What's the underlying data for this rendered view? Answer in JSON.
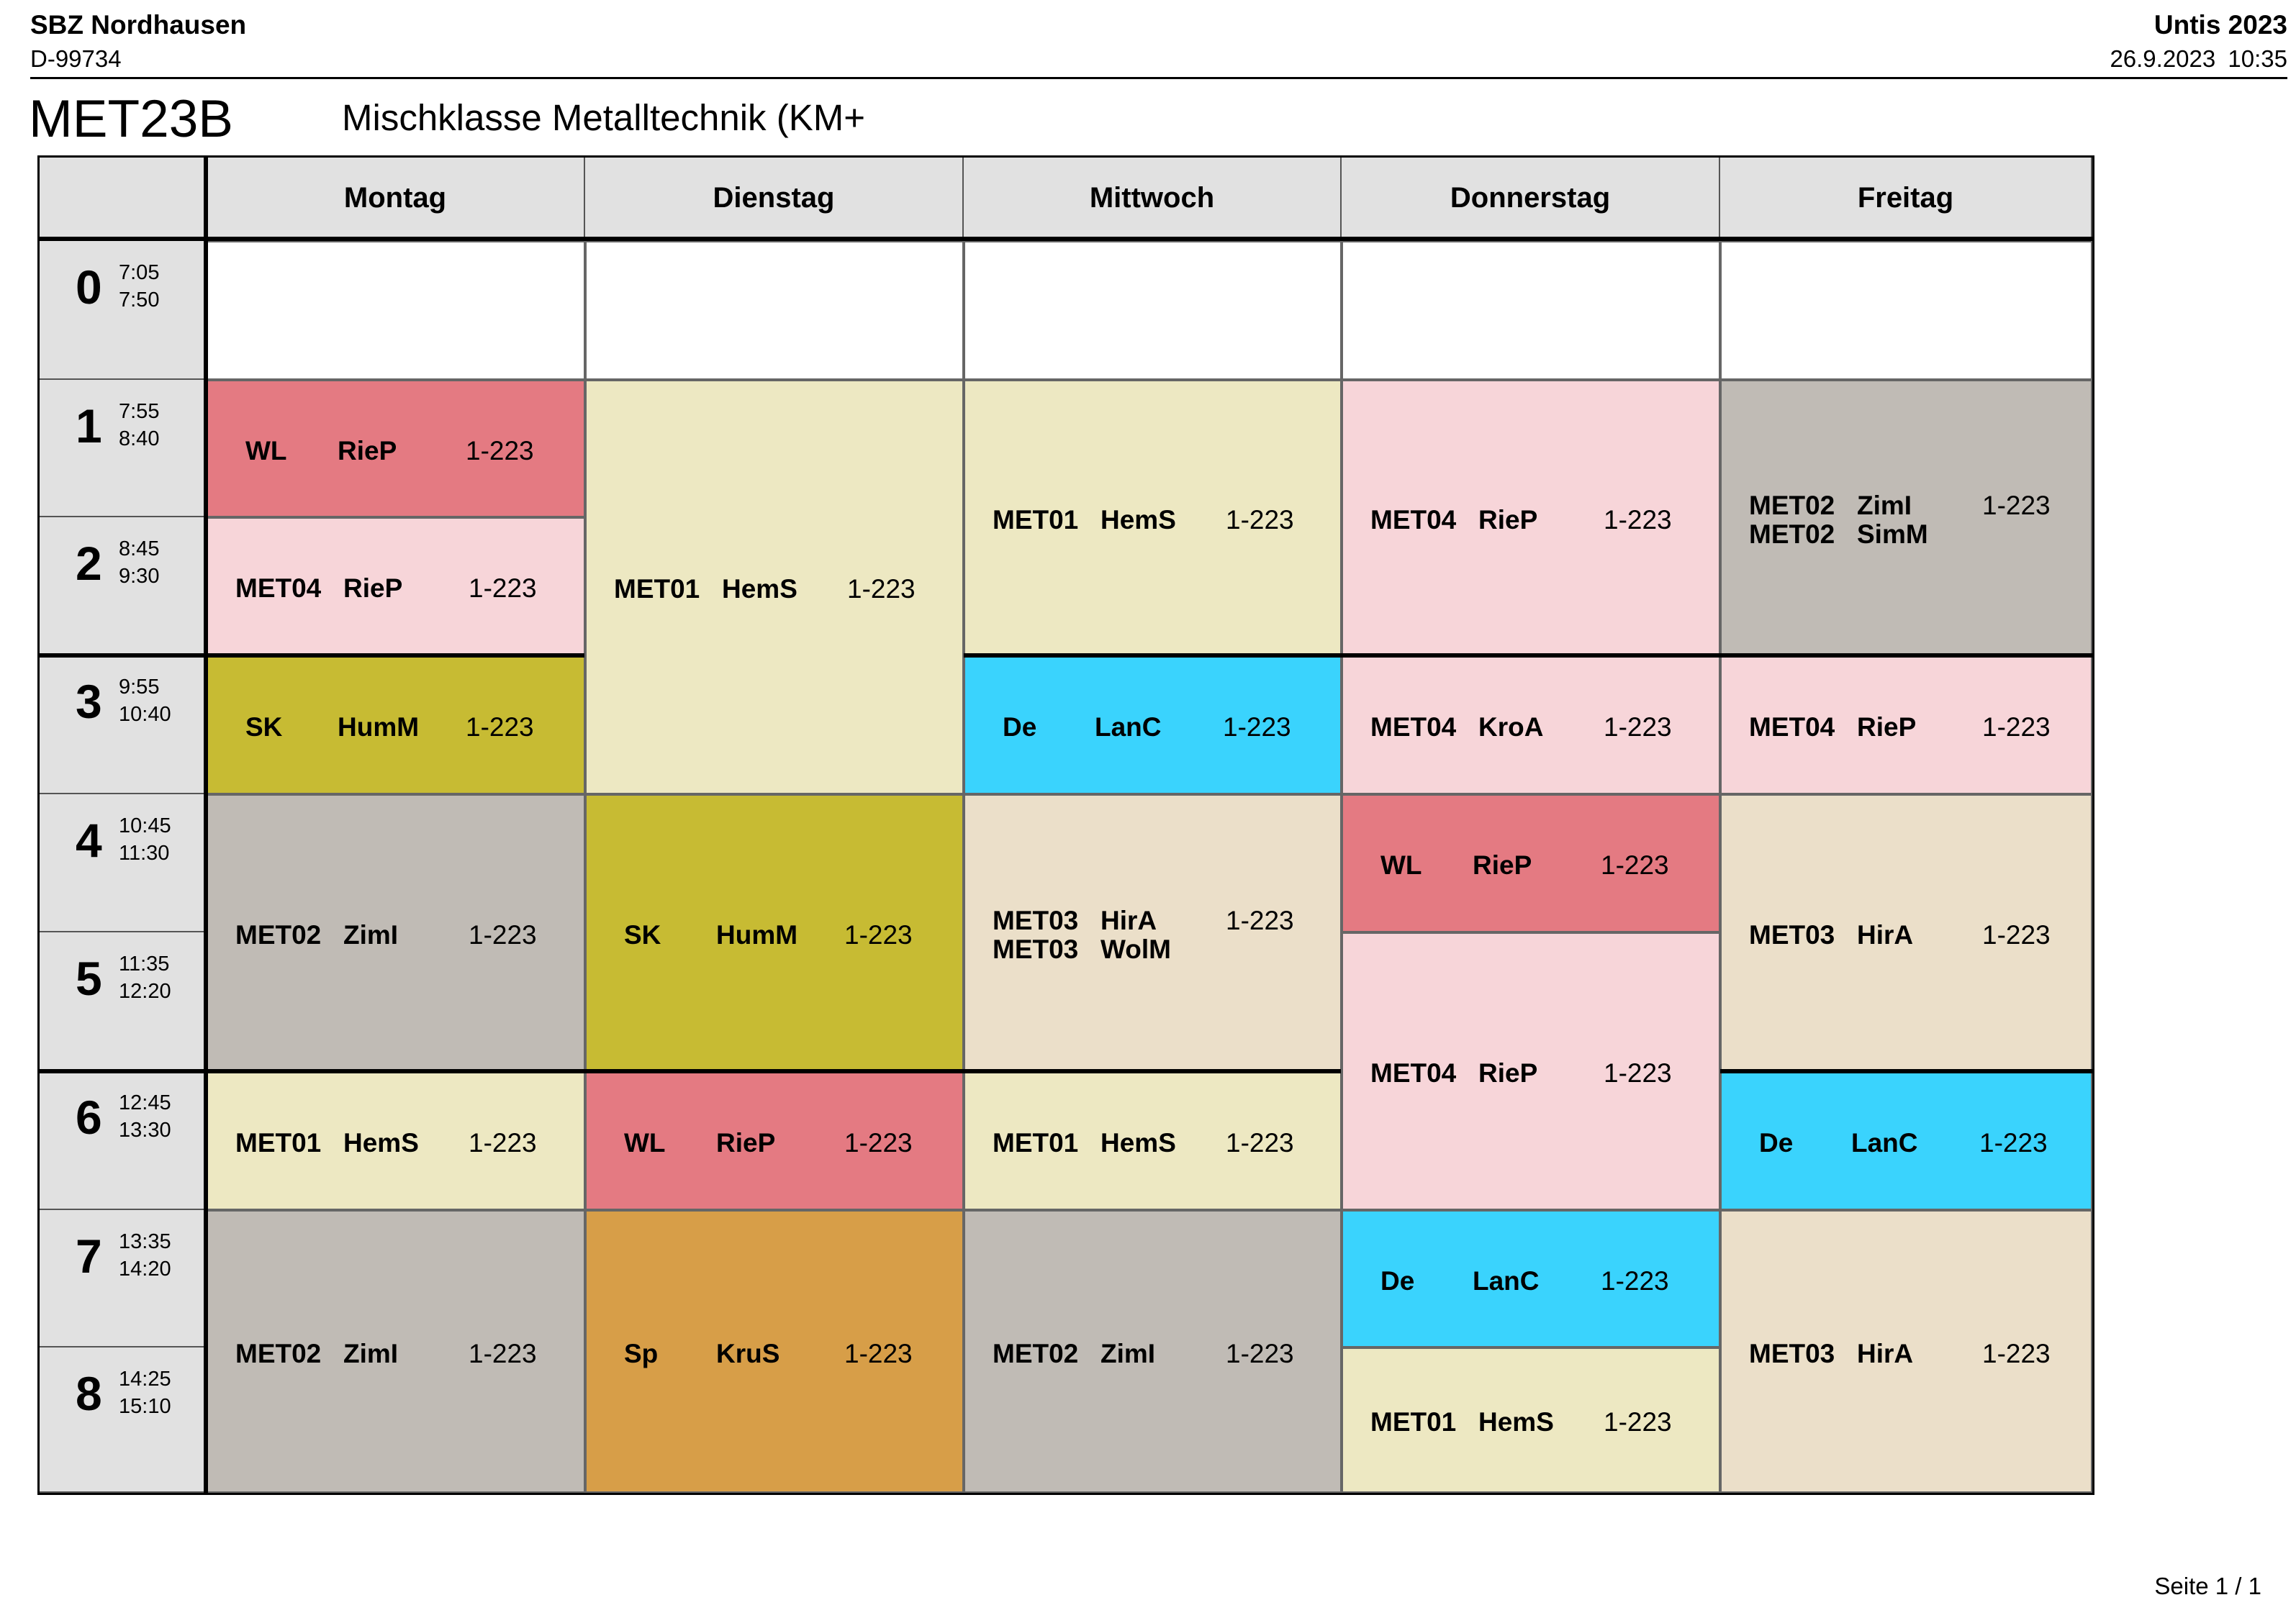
{
  "header": {
    "school": "SBZ Nordhausen",
    "zip": "D-99734",
    "software": "Untis 2023",
    "timestamp": "26.9.2023  10:35"
  },
  "class": {
    "code": "MET23B",
    "name": "Mischklasse Metalltechnik (KM+"
  },
  "footer": {
    "page": "Seite 1 / 1"
  },
  "colors": {
    "rose": "#e47a82",
    "pink": "#f7d5d9",
    "cream": "#ede8c2",
    "olive": "#c7bb33",
    "grey": "#c0bbb5",
    "cyan": "#3ad3fd",
    "beige": "#ebdfc9",
    "orange": "#d79e48",
    "header_grey": "#e1e1e1"
  },
  "days": [
    "Montag",
    "Dienstag",
    "Mittwoch",
    "Donnerstag",
    "Freitag"
  ],
  "periods": [
    {
      "num": "0",
      "start": "7:05",
      "end": "7:50"
    },
    {
      "num": "1",
      "start": "7:55",
      "end": "8:40"
    },
    {
      "num": "2",
      "start": "8:45",
      "end": "9:30"
    },
    {
      "num": "3",
      "start": "9:55",
      "end": "10:40"
    },
    {
      "num": "4",
      "start": "10:45",
      "end": "11:30"
    },
    {
      "num": "5",
      "start": "11:35",
      "end": "12:20"
    },
    {
      "num": "6",
      "start": "12:45",
      "end": "13:30"
    },
    {
      "num": "7",
      "start": "13:35",
      "end": "14:20"
    },
    {
      "num": "8",
      "start": "14:25",
      "end": "15:10"
    }
  ],
  "lessons": [
    {
      "day": 0,
      "start": 1,
      "span": 1,
      "color": "rose",
      "lines": [
        {
          "subject": "WL",
          "teacher": "RieP"
        }
      ],
      "room": "1-223"
    },
    {
      "day": 0,
      "start": 2,
      "span": 1,
      "color": "pink",
      "lines": [
        {
          "subject": "MET04",
          "teacher": "RieP"
        }
      ],
      "room": "1-223"
    },
    {
      "day": 0,
      "start": 3,
      "span": 1,
      "color": "olive",
      "lines": [
        {
          "subject": "SK",
          "teacher": "HumM"
        }
      ],
      "room": "1-223"
    },
    {
      "day": 0,
      "start": 4,
      "span": 2,
      "color": "grey",
      "lines": [
        {
          "subject": "MET02",
          "teacher": "ZimI"
        }
      ],
      "room": "1-223"
    },
    {
      "day": 0,
      "start": 6,
      "span": 1,
      "color": "cream",
      "lines": [
        {
          "subject": "MET01",
          "teacher": "HemS"
        }
      ],
      "room": "1-223"
    },
    {
      "day": 0,
      "start": 7,
      "span": 2,
      "color": "grey",
      "lines": [
        {
          "subject": "MET02",
          "teacher": "ZimI"
        }
      ],
      "room": "1-223"
    },
    {
      "day": 1,
      "start": 1,
      "span": 3,
      "color": "cream",
      "lines": [
        {
          "subject": "MET01",
          "teacher": "HemS"
        }
      ],
      "room": "1-223"
    },
    {
      "day": 1,
      "start": 4,
      "span": 2,
      "color": "olive",
      "lines": [
        {
          "subject": "SK",
          "teacher": "HumM"
        }
      ],
      "room": "1-223"
    },
    {
      "day": 1,
      "start": 6,
      "span": 1,
      "color": "rose",
      "lines": [
        {
          "subject": "WL",
          "teacher": "RieP"
        }
      ],
      "room": "1-223"
    },
    {
      "day": 1,
      "start": 7,
      "span": 2,
      "color": "orange",
      "lines": [
        {
          "subject": "Sp",
          "teacher": "KruS"
        }
      ],
      "room": "1-223"
    },
    {
      "day": 2,
      "start": 1,
      "span": 2,
      "color": "cream",
      "lines": [
        {
          "subject": "MET01",
          "teacher": "HemS"
        }
      ],
      "room": "1-223"
    },
    {
      "day": 2,
      "start": 3,
      "span": 1,
      "color": "cyan",
      "lines": [
        {
          "subject": "De",
          "teacher": "LanC"
        }
      ],
      "room": "1-223"
    },
    {
      "day": 2,
      "start": 4,
      "span": 2,
      "color": "beige",
      "lines": [
        {
          "subject": "MET03",
          "teacher": "HirA"
        },
        {
          "subject": "MET03",
          "teacher": "WolM"
        }
      ],
      "room": "1-223"
    },
    {
      "day": 2,
      "start": 6,
      "span": 1,
      "color": "cream",
      "lines": [
        {
          "subject": "MET01",
          "teacher": "HemS"
        }
      ],
      "room": "1-223"
    },
    {
      "day": 2,
      "start": 7,
      "span": 2,
      "color": "grey",
      "lines": [
        {
          "subject": "MET02",
          "teacher": "ZimI"
        }
      ],
      "room": "1-223"
    },
    {
      "day": 3,
      "start": 1,
      "span": 2,
      "color": "pink",
      "lines": [
        {
          "subject": "MET04",
          "teacher": "RieP"
        }
      ],
      "room": "1-223"
    },
    {
      "day": 3,
      "start": 3,
      "span": 1,
      "color": "pink",
      "lines": [
        {
          "subject": "MET04",
          "teacher": "KroA"
        }
      ],
      "room": "1-223"
    },
    {
      "day": 3,
      "start": 4,
      "span": 1,
      "color": "rose",
      "lines": [
        {
          "subject": "WL",
          "teacher": "RieP"
        }
      ],
      "room": "1-223"
    },
    {
      "day": 3,
      "start": 5,
      "span": 2,
      "color": "pink",
      "lines": [
        {
          "subject": "MET04",
          "teacher": "RieP"
        }
      ],
      "room": "1-223"
    },
    {
      "day": 3,
      "start": 7,
      "span": 1,
      "color": "cyan",
      "lines": [
        {
          "subject": "De",
          "teacher": "LanC"
        }
      ],
      "room": "1-223"
    },
    {
      "day": 3,
      "start": 8,
      "span": 1,
      "color": "cream",
      "lines": [
        {
          "subject": "MET01",
          "teacher": "HemS"
        }
      ],
      "room": "1-223"
    },
    {
      "day": 4,
      "start": 1,
      "span": 2,
      "color": "grey",
      "lines": [
        {
          "subject": "MET02",
          "teacher": "ZimI"
        },
        {
          "subject": "MET02",
          "teacher": "SimM"
        }
      ],
      "room": "1-223"
    },
    {
      "day": 4,
      "start": 3,
      "span": 1,
      "color": "pink",
      "lines": [
        {
          "subject": "MET04",
          "teacher": "RieP"
        }
      ],
      "room": "1-223"
    },
    {
      "day": 4,
      "start": 4,
      "span": 2,
      "color": "beige",
      "lines": [
        {
          "subject": "MET03",
          "teacher": "HirA"
        }
      ],
      "room": "1-223"
    },
    {
      "day": 4,
      "start": 6,
      "span": 1,
      "color": "cyan",
      "lines": [
        {
          "subject": "De",
          "teacher": "LanC"
        }
      ],
      "room": "1-223"
    },
    {
      "day": 4,
      "start": 7,
      "span": 2,
      "color": "beige",
      "lines": [
        {
          "subject": "MET03",
          "teacher": "HirA"
        }
      ],
      "room": "1-223"
    }
  ]
}
